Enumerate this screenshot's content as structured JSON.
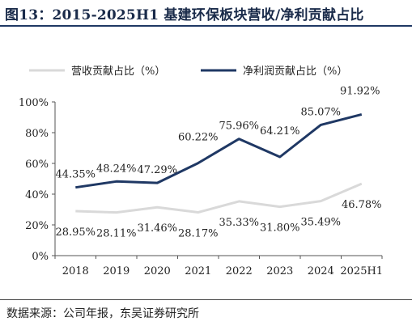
{
  "header": {
    "title": "图13：2015-2025H1 基建环保板块营收/净利贡献占比"
  },
  "footer": {
    "source": "数据来源：公司年报，东吴证券研究所"
  },
  "chart_data": {
    "type": "line",
    "title": "图13：2015-2025H1 基建环保板块营收/净利贡献占比",
    "categories": [
      "2018",
      "2019",
      "2020",
      "2021",
      "2022",
      "2023",
      "2024",
      "2025H1"
    ],
    "ylim": [
      0,
      100
    ],
    "yticks": [
      "0%",
      "20%",
      "40%",
      "60%",
      "80%",
      "100%"
    ],
    "grid": false,
    "legend_position": "top",
    "series": [
      {
        "name": "营收贡献占比（%）",
        "color": "#d9d9d9",
        "values": [
          28.95,
          28.11,
          31.46,
          28.17,
          35.33,
          31.8,
          35.49,
          46.78
        ],
        "labels": [
          "28.95%",
          "28.11%",
          "31.46%",
          "28.17%",
          "35.33%",
          "31.80%",
          "35.49%",
          "46.78%"
        ]
      },
      {
        "name": "净利润贡献占比（%）",
        "color": "#1f3864",
        "values": [
          44.35,
          48.24,
          47.29,
          60.22,
          75.96,
          64.21,
          85.07,
          91.92
        ],
        "labels": [
          "44.35%",
          "48.24%",
          "47.29%",
          "60.22%",
          "75.96%",
          "64.21%",
          "85.07%",
          "91.92%"
        ]
      }
    ]
  }
}
